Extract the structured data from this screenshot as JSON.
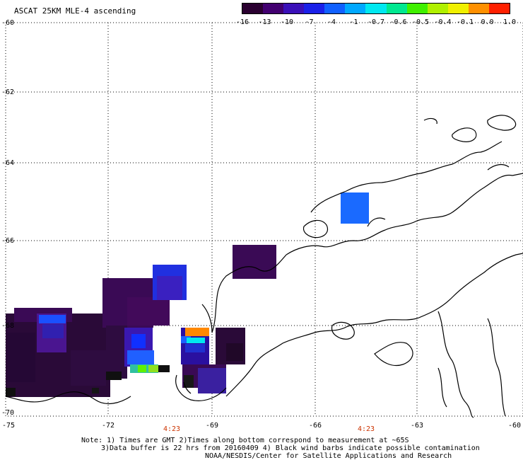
{
  "title": "ASCAT 25KM MLE-4 ascending",
  "colorbar": {
    "labels": [
      "-16",
      "-13",
      "-10",
      "-7",
      "-4",
      "-1",
      "-0.7",
      "-0.6",
      "-0.5",
      "-0.4",
      "-0.1",
      "0.0",
      "1.0"
    ],
    "colors": [
      "#2a0030",
      "#420070",
      "#3a10b8",
      "#1a20e8",
      "#1060ff",
      "#00a8ff",
      "#00e8f0",
      "#00e890",
      "#40f000",
      "#b0f000",
      "#f0f000",
      "#ff9000",
      "#ff2000"
    ]
  },
  "axes": {
    "y_labels": [
      "-60",
      "-62",
      "-64",
      "-66",
      "-68",
      "-70"
    ],
    "x_labels": [
      "-75",
      "-72",
      "-69",
      "-66",
      "-63",
      "-60"
    ],
    "time_labels": [
      "4:23",
      "4:23"
    ]
  },
  "notes": {
    "line1": "Note: 1) Times are GMT 2)Times along bottom correspond to measurement at ~65S",
    "line2": "3)Data buffer is 22 hrs from 20160409 4) Black wind barbs indicate possible contamination",
    "line3": "NOAA/NESDIS/Center for Satellite Applications and Research"
  }
}
